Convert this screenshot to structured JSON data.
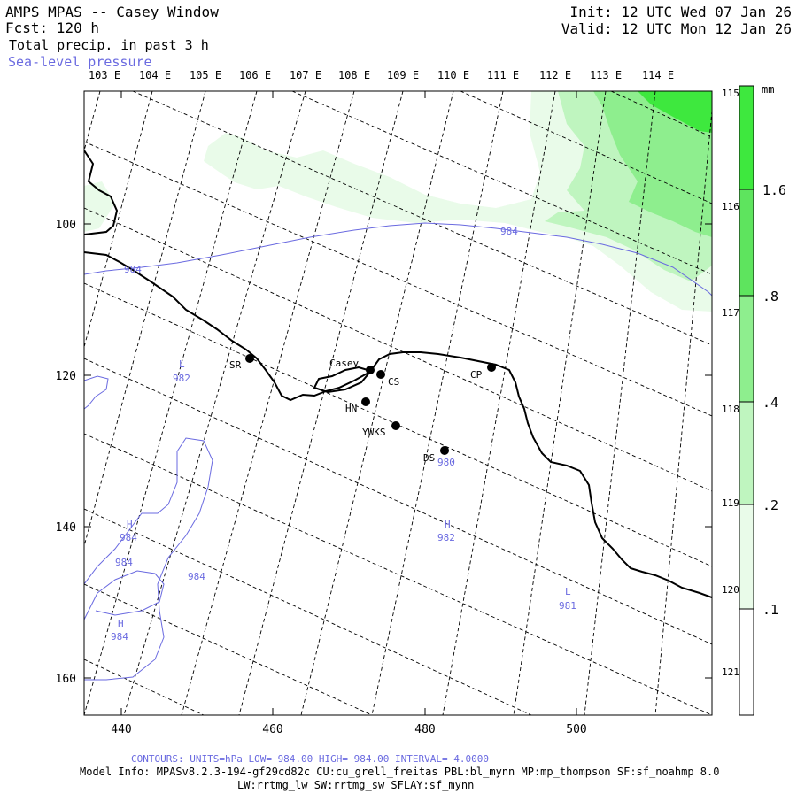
{
  "header": {
    "title": "AMPS MPAS -- Casey Window",
    "forecast": "Fcst:  120 h",
    "field": "Total precip. in past 3 h",
    "contour_field": "Sea-level pressure",
    "init": "Init: 12 UTC Wed 07 Jan 26",
    "valid": "Valid: 12 UTC Mon 12 Jan 26"
  },
  "colors": {
    "contour": "#6a6ae0",
    "coast": "#000000",
    "grid": "#000000",
    "precip_light": "#e9fbe9",
    "precip_medium": "#bff5bf",
    "precip_heavy": "#8eee8e",
    "precip_max": "#3ee83e"
  },
  "grid_x_labels": [
    "440",
    "460",
    "480",
    "500"
  ],
  "grid_y_labels": [
    "100",
    "120",
    "140",
    "160"
  ],
  "lon_labels_top": [
    "103 E",
    "104 E",
    "105 E",
    "106 E",
    "107 E",
    "108 E",
    "109 E",
    "110 E",
    "111 E",
    "112 E",
    "113 E",
    "114 E"
  ],
  "lon_labels_right": [
    "115 E",
    "116 E",
    "117 E",
    "118 E",
    "119 E",
    "120 E",
    "121 E"
  ],
  "colorbar": {
    "unit": "mm",
    "ticks": [
      "1.6",
      ".8",
      ".4",
      ".2",
      ".1"
    ]
  },
  "stations": [
    {
      "id": "SR",
      "label": "SR"
    },
    {
      "id": "casey",
      "label": "Casey"
    },
    {
      "id": "CS",
      "label": "CS"
    },
    {
      "id": "CP",
      "label": "CP"
    },
    {
      "id": "HN",
      "label": "HN"
    },
    {
      "id": "YWKS",
      "label": "YWKS"
    },
    {
      "id": "DS",
      "label": "DS"
    }
  ],
  "pressure_labels": [
    {
      "id": "p984-a",
      "text": "984"
    },
    {
      "id": "p984-b",
      "text": "984"
    },
    {
      "id": "p980",
      "text": "980"
    },
    {
      "id": "p982-low",
      "text": "982"
    },
    {
      "id": "p982-high",
      "text": "982"
    },
    {
      "id": "p981",
      "text": "981"
    },
    {
      "id": "p984-h1",
      "text": "984"
    },
    {
      "id": "p984-c1",
      "text": "984"
    },
    {
      "id": "p984-c2",
      "text": "984"
    },
    {
      "id": "p984-h2",
      "text": "984"
    }
  ],
  "pressure_centers": [
    {
      "id": "L1",
      "text": "L"
    },
    {
      "id": "H1",
      "text": "H"
    },
    {
      "id": "H2",
      "text": "H"
    },
    {
      "id": "H3",
      "text": "H"
    },
    {
      "id": "L2",
      "text": "L"
    }
  ],
  "footer": {
    "contours": "CONTOURS:  UNITS=hPa  LOW=   984.00       HIGH=   984.00       INTERVAL=    4.0000",
    "model_info": "Model Info: MPASv8.2.3-194-gf29cd82c CU:cu_grell_freitas PBL:bl_mynn MP:mp_thompson SF:sf_noahmp 8.0",
    "schemes": "LW:rrtmg_lw SW:rrtmg_sw SFLAY:sf_mynn"
  }
}
